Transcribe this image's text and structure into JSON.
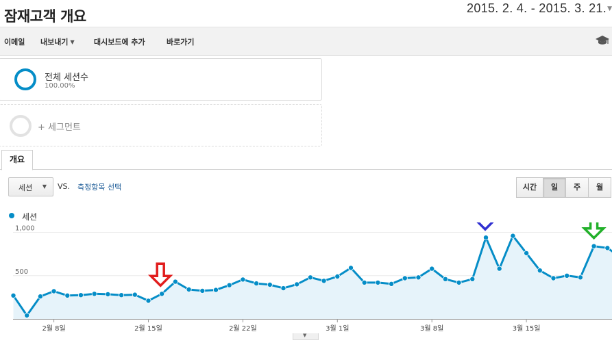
{
  "header": {
    "title": "잠재고객 개요",
    "date_range": "2015. 2. 4. - 2015. 3. 21."
  },
  "toolbar": {
    "email": "이메일",
    "export": "내보내기",
    "add_to_dashboard": "대시보드에 추가",
    "shortcut": "바로가기",
    "help_icon": "graduation-cap-icon"
  },
  "segments": {
    "active": {
      "name": "전체 세션수",
      "percent": "100.00%"
    },
    "add_label": "+ 세그먼트"
  },
  "tabs": [
    "개요"
  ],
  "controls": {
    "metric": "세션",
    "vs": "VS.",
    "compare_link": "측정항목 선택",
    "granularity": [
      "시간",
      "일",
      "주",
      "월"
    ],
    "granularity_selected": "일"
  },
  "colors": {
    "series": "#058dc7",
    "area_fill": "#e6f3fa",
    "arrow_red": "#e11d1d",
    "arrow_blue": "#3131d1",
    "arrow_green": "#22b02a"
  },
  "chart_data": {
    "type": "area",
    "legend": "세션",
    "ylim": [
      0,
      1000
    ],
    "yticks": [
      "500",
      "1,000"
    ],
    "xtick_labels": [
      "2월 8일",
      "2월 15일",
      "2월 22일",
      "3월 1일",
      "3월 8일",
      "3월 15일"
    ],
    "xtick_index": [
      3,
      10,
      17,
      24,
      31,
      38
    ],
    "series": [
      {
        "name": "세션",
        "values": [
          270,
          40,
          260,
          320,
          270,
          275,
          290,
          285,
          275,
          280,
          210,
          290,
          430,
          340,
          325,
          335,
          390,
          455,
          410,
          395,
          355,
          400,
          480,
          440,
          490,
          590,
          420,
          420,
          405,
          470,
          480,
          580,
          460,
          420,
          460,
          940,
          580,
          960,
          760,
          560,
          470,
          500,
          480,
          840,
          820,
          710
        ]
      }
    ],
    "annotation_arrows": [
      {
        "index": 11,
        "color": "red"
      },
      {
        "index": 35,
        "color": "blue"
      },
      {
        "index": 43,
        "color": "green"
      }
    ]
  }
}
